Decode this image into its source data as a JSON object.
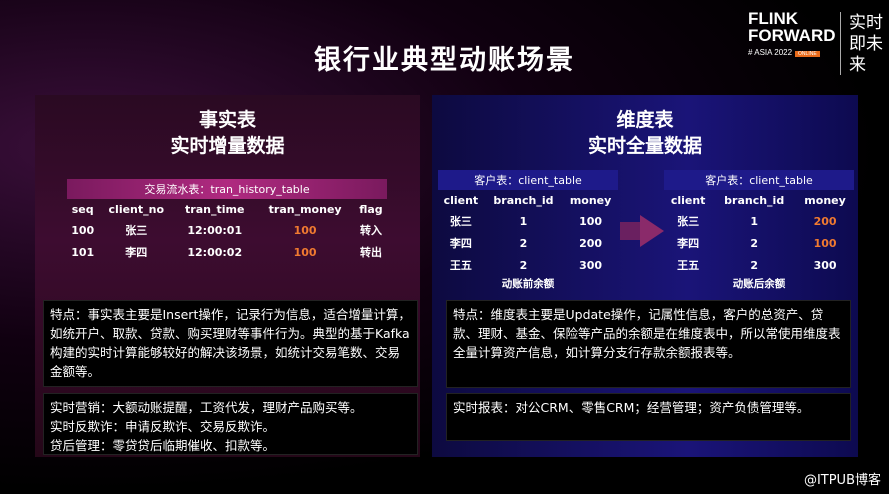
{
  "title": "银行业典型动账场景",
  "logo": {
    "line1": "FLINK",
    "line2": "FORWARD",
    "line3": "# ASIA 2022",
    "tag": "ONLINE",
    "cn": "实时即未来"
  },
  "left": {
    "heading1": "事实表",
    "heading2": "实时增量数据",
    "table": {
      "caption": "交易流水表：tran_history_table",
      "headers": [
        "seq",
        "client_no",
        "tran_time",
        "tran_money",
        "flag"
      ],
      "rows": [
        [
          "100",
          "张三",
          "12:00:01",
          "100",
          "转入"
        ],
        [
          "101",
          "李四",
          "12:00:02",
          "100",
          "转出"
        ]
      ]
    },
    "desc": "特点：事实表主要是Insert操作，记录行为信息，适合增量计算，如统开户、取款、贷款、购买理财等事件行为。典型的基于Kafka构建的实时计算能够较好的解决该场景，如统计交易笔数、交易金额等。",
    "uses": [
      "实时营销：大额动账提醒，工资代发，理财产品购买等。",
      "实时反欺诈：申请反欺诈、交易反欺诈。",
      "贷后管理：零贷贷后临期催收、扣款等。"
    ]
  },
  "right": {
    "heading1": "维度表",
    "heading2": "实时全量数据",
    "before": {
      "caption": "客户表：client_table",
      "headers": [
        "client",
        "branch_id",
        "money"
      ],
      "rows": [
        [
          "张三",
          "1",
          "100"
        ],
        [
          "李四",
          "2",
          "200"
        ],
        [
          "王五",
          "2",
          "300"
        ]
      ],
      "note": "动账前余额"
    },
    "after": {
      "caption": "客户表：client_table",
      "headers": [
        "client",
        "branch_id",
        "money"
      ],
      "rows": [
        [
          "张三",
          "1",
          "200"
        ],
        [
          "李四",
          "2",
          "100"
        ],
        [
          "王五",
          "2",
          "300"
        ]
      ],
      "note": "动账后余额"
    },
    "desc": "特点：维度表主要是Update操作，记属性信息，客户的总资产、贷款、理财、基金、保险等产品的余额是在维度表中，所以常使用维度表全量计算资产信息，如计算分支行存款余额报表等。",
    "uses": "实时报表：对公CRM、零售CRM；经营管理；资产负债管理等。"
  },
  "watermark": "@ITPUB博客",
  "colors": {
    "highlight": "#f07a30",
    "left_panel": "#3d0c30",
    "right_panel": "#1a1478"
  }
}
